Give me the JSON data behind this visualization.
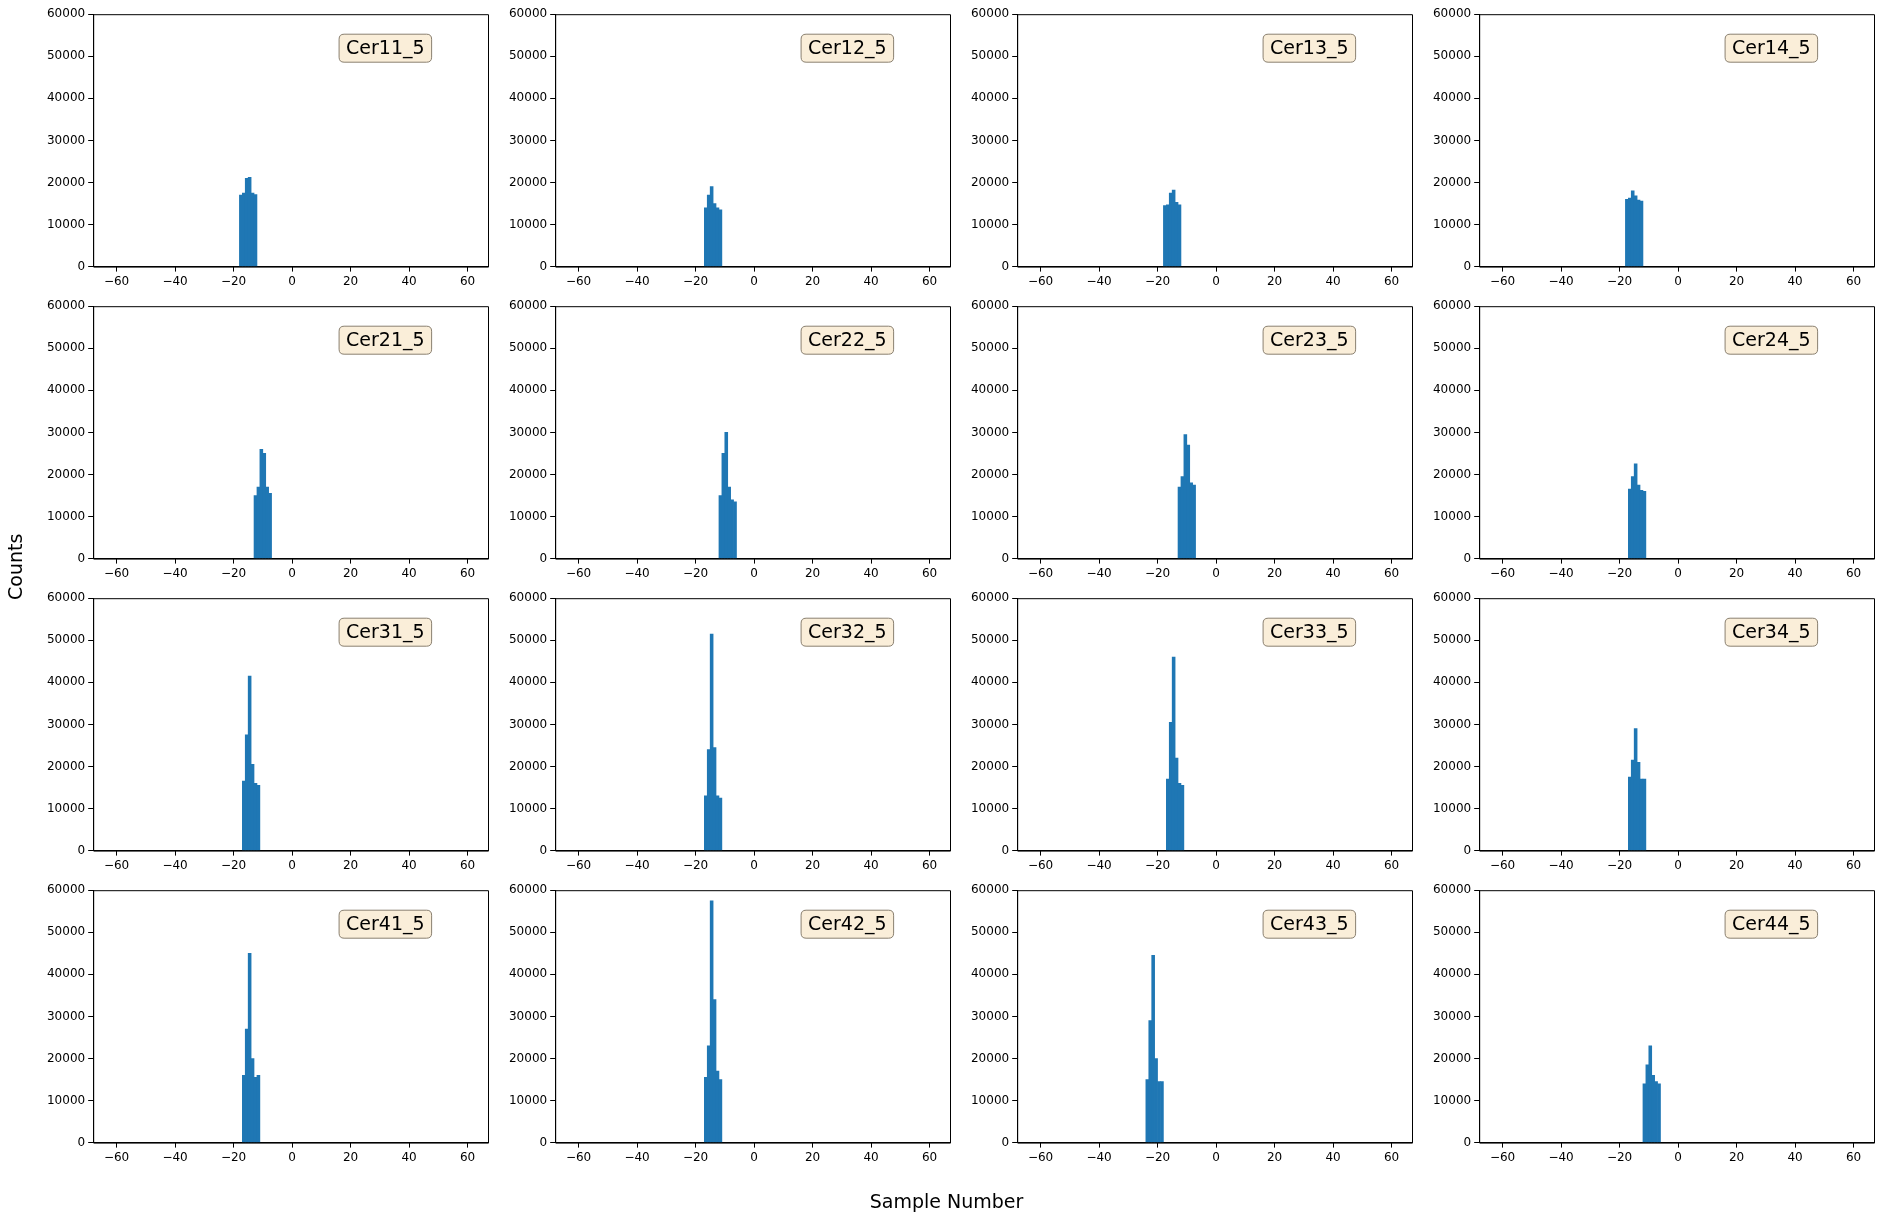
{
  "chart_data": [
    {
      "type": "histogram",
      "annotations": [
        "Cer11_5"
      ],
      "color": "#1f77b4",
      "bins": [
        -18,
        -17,
        -16,
        -15,
        -14,
        -13,
        -12
      ],
      "values": [
        17000,
        17500,
        21000,
        21200,
        17500,
        17100
      ],
      "xlim": [
        -68,
        67
      ],
      "ylim": [
        0,
        60000
      ],
      "xticks": [
        {
          "value": -60,
          "label": "−60"
        },
        {
          "value": -40,
          "label": "−40"
        },
        {
          "value": -20,
          "label": "−20"
        },
        0,
        20,
        40,
        60
      ],
      "yticks": [
        0,
        10000,
        20000,
        30000,
        40000,
        50000,
        60000
      ]
    },
    {
      "type": "histogram",
      "annotations": [
        "Cer12_5"
      ],
      "color": "#1f77b4",
      "bins": [
        -17,
        -16,
        -15,
        -14,
        -13,
        -12,
        -11
      ],
      "values": [
        14000,
        17000,
        19000,
        15000,
        14000,
        13500
      ],
      "xlim": [
        -68,
        67
      ],
      "ylim": [
        0,
        60000
      ],
      "xticks": [
        {
          "value": -60,
          "label": "−60"
        },
        {
          "value": -40,
          "label": "−40"
        },
        {
          "value": -20,
          "label": "−20"
        },
        0,
        20,
        40,
        60
      ],
      "yticks": [
        0,
        10000,
        20000,
        30000,
        40000,
        50000,
        60000
      ]
    },
    {
      "type": "histogram",
      "annotations": [
        "Cer13_5"
      ],
      "color": "#1f77b4",
      "bins": [
        -18,
        -17,
        -16,
        -15,
        -14,
        -13,
        -12
      ],
      "values": [
        14500,
        14700,
        17500,
        18200,
        15300,
        14700
      ],
      "xlim": [
        -68,
        67
      ],
      "ylim": [
        0,
        60000
      ],
      "xticks": [
        {
          "value": -60,
          "label": "−60"
        },
        {
          "value": -40,
          "label": "−40"
        },
        {
          "value": -20,
          "label": "−20"
        },
        0,
        20,
        40,
        60
      ],
      "yticks": [
        0,
        10000,
        20000,
        30000,
        40000,
        50000,
        60000
      ]
    },
    {
      "type": "histogram",
      "annotations": [
        "Cer14_5"
      ],
      "color": "#1f77b4",
      "bins": [
        -18,
        -17,
        -16,
        -15,
        -14,
        -13,
        -12
      ],
      "values": [
        16000,
        16300,
        18000,
        16800,
        15800,
        15600
      ],
      "xlim": [
        -68,
        67
      ],
      "ylim": [
        0,
        60000
      ],
      "xticks": [
        {
          "value": -60,
          "label": "−60"
        },
        {
          "value": -40,
          "label": "−40"
        },
        {
          "value": -20,
          "label": "−20"
        },
        0,
        20,
        40,
        60
      ],
      "yticks": [
        0,
        10000,
        20000,
        30000,
        40000,
        50000,
        60000
      ]
    },
    {
      "type": "histogram",
      "ylabel": "Counts",
      "annotations": [
        "Cer21_5"
      ],
      "color": "#1f77b4",
      "bins": [
        -13,
        -12,
        -11,
        -10,
        -9,
        -8,
        -7
      ],
      "values": [
        15000,
        17000,
        26000,
        25000,
        17000,
        15500
      ],
      "xlim": [
        -68,
        67
      ],
      "ylim": [
        0,
        60000
      ],
      "xticks": [
        {
          "value": -60,
          "label": "−60"
        },
        {
          "value": -40,
          "label": "−40"
        },
        {
          "value": -20,
          "label": "−20"
        },
        0,
        20,
        40,
        60
      ],
      "yticks": [
        0,
        10000,
        20000,
        30000,
        40000,
        50000,
        60000
      ]
    },
    {
      "type": "histogram",
      "annotations": [
        "Cer22_5"
      ],
      "color": "#1f77b4",
      "bins": [
        -12,
        -11,
        -10,
        -9,
        -8,
        -7,
        -6
      ],
      "values": [
        15000,
        25000,
        30000,
        17000,
        14000,
        13500
      ],
      "xlim": [
        -68,
        67
      ],
      "ylim": [
        0,
        60000
      ],
      "xticks": [
        {
          "value": -60,
          "label": "−60"
        },
        {
          "value": -40,
          "label": "−40"
        },
        {
          "value": -20,
          "label": "−20"
        },
        0,
        20,
        40,
        60
      ],
      "yticks": [
        0,
        10000,
        20000,
        30000,
        40000,
        50000,
        60000
      ]
    },
    {
      "type": "histogram",
      "annotations": [
        "Cer23_5"
      ],
      "color": "#1f77b4",
      "bins": [
        -13,
        -12,
        -11,
        -10,
        -9,
        -8,
        -7
      ],
      "values": [
        17000,
        19500,
        29500,
        27000,
        18000,
        17500
      ],
      "xlim": [
        -68,
        67
      ],
      "ylim": [
        0,
        60000
      ],
      "xticks": [
        {
          "value": -60,
          "label": "−60"
        },
        {
          "value": -40,
          "label": "−40"
        },
        {
          "value": -20,
          "label": "−20"
        },
        0,
        20,
        40,
        60
      ],
      "yticks": [
        0,
        10000,
        20000,
        30000,
        40000,
        50000,
        60000
      ]
    },
    {
      "type": "histogram",
      "annotations": [
        "Cer24_5"
      ],
      "color": "#1f77b4",
      "bins": [
        -17,
        -16,
        -15,
        -14,
        -13,
        -12,
        -11
      ],
      "values": [
        16500,
        19500,
        22500,
        17500,
        16200,
        16000
      ],
      "xlim": [
        -68,
        67
      ],
      "ylim": [
        0,
        60000
      ],
      "xticks": [
        {
          "value": -60,
          "label": "−60"
        },
        {
          "value": -40,
          "label": "−40"
        },
        {
          "value": -20,
          "label": "−20"
        },
        0,
        20,
        40,
        60
      ],
      "yticks": [
        0,
        10000,
        20000,
        30000,
        40000,
        50000,
        60000
      ]
    },
    {
      "type": "histogram",
      "annotations": [
        "Cer31_5"
      ],
      "color": "#1f77b4",
      "bins": [
        -17,
        -16,
        -15,
        -14,
        -13,
        -12,
        -11
      ],
      "values": [
        16500,
        27500,
        41500,
        20500,
        16000,
        15500
      ],
      "xlim": [
        -68,
        67
      ],
      "ylim": [
        0,
        60000
      ],
      "xticks": [
        {
          "value": -60,
          "label": "−60"
        },
        {
          "value": -40,
          "label": "−40"
        },
        {
          "value": -20,
          "label": "−20"
        },
        0,
        20,
        40,
        60
      ],
      "yticks": [
        0,
        10000,
        20000,
        30000,
        40000,
        50000,
        60000
      ]
    },
    {
      "type": "histogram",
      "annotations": [
        "Cer32_5"
      ],
      "color": "#1f77b4",
      "bins": [
        -17,
        -16,
        -15,
        -14,
        -13,
        -12,
        -11
      ],
      "values": [
        13000,
        24000,
        51500,
        24500,
        13000,
        12500
      ],
      "xlim": [
        -68,
        67
      ],
      "ylim": [
        0,
        60000
      ],
      "xticks": [
        {
          "value": -60,
          "label": "−60"
        },
        {
          "value": -40,
          "label": "−40"
        },
        {
          "value": -20,
          "label": "−20"
        },
        0,
        20,
        40,
        60
      ],
      "yticks": [
        0,
        10000,
        20000,
        30000,
        40000,
        50000,
        60000
      ]
    },
    {
      "type": "histogram",
      "annotations": [
        "Cer33_5"
      ],
      "color": "#1f77b4",
      "bins": [
        -17,
        -16,
        -15,
        -14,
        -13,
        -12,
        -11
      ],
      "values": [
        17000,
        30500,
        46000,
        22000,
        16000,
        15500
      ],
      "xlim": [
        -68,
        67
      ],
      "ylim": [
        0,
        60000
      ],
      "xticks": [
        {
          "value": -60,
          "label": "−60"
        },
        {
          "value": -40,
          "label": "−40"
        },
        {
          "value": -20,
          "label": "−20"
        },
        0,
        20,
        40,
        60
      ],
      "yticks": [
        0,
        10000,
        20000,
        30000,
        40000,
        50000,
        60000
      ]
    },
    {
      "type": "histogram",
      "annotations": [
        "Cer34_5"
      ],
      "color": "#1f77b4",
      "bins": [
        -17,
        -16,
        -15,
        -14,
        -13,
        -12,
        -11
      ],
      "values": [
        17500,
        21500,
        29000,
        21000,
        17000,
        17000
      ],
      "xlim": [
        -68,
        67
      ],
      "ylim": [
        0,
        60000
      ],
      "xticks": [
        {
          "value": -60,
          "label": "−60"
        },
        {
          "value": -40,
          "label": "−40"
        },
        {
          "value": -20,
          "label": "−20"
        },
        0,
        20,
        40,
        60
      ],
      "yticks": [
        0,
        10000,
        20000,
        30000,
        40000,
        50000,
        60000
      ]
    },
    {
      "type": "histogram",
      "annotations": [
        "Cer41_5"
      ],
      "color": "#1f77b4",
      "bins": [
        -17,
        -16,
        -15,
        -14,
        -13,
        -12,
        -11
      ],
      "values": [
        16000,
        27000,
        45000,
        20000,
        15500,
        16000
      ],
      "xlim": [
        -68,
        67
      ],
      "ylim": [
        0,
        60000
      ],
      "xticks": [
        {
          "value": -60,
          "label": "−60"
        },
        {
          "value": -40,
          "label": "−40"
        },
        {
          "value": -20,
          "label": "−20"
        },
        0,
        20,
        40,
        60
      ],
      "yticks": [
        0,
        10000,
        20000,
        30000,
        40000,
        50000,
        60000
      ]
    },
    {
      "type": "histogram",
      "xlabel": "Sample Number",
      "annotations": [
        "Cer42_5"
      ],
      "color": "#1f77b4",
      "bins": [
        -17,
        -16,
        -15,
        -14,
        -13,
        -12,
        -11
      ],
      "values": [
        15500,
        23000,
        57500,
        34000,
        17000,
        15000
      ],
      "xlim": [
        -68,
        67
      ],
      "ylim": [
        0,
        60000
      ],
      "xticks": [
        {
          "value": -60,
          "label": "−60"
        },
        {
          "value": -40,
          "label": "−40"
        },
        {
          "value": -20,
          "label": "−20"
        },
        0,
        20,
        40,
        60
      ],
      "yticks": [
        0,
        10000,
        20000,
        30000,
        40000,
        50000,
        60000
      ]
    },
    {
      "type": "histogram",
      "annotations": [
        "Cer43_5"
      ],
      "color": "#1f77b4",
      "bins": [
        -24,
        -23,
        -22,
        -21,
        -20,
        -19,
        -18
      ],
      "values": [
        15000,
        29000,
        44500,
        20000,
        14500,
        14500
      ],
      "xlim": [
        -68,
        67
      ],
      "ylim": [
        0,
        60000
      ],
      "xticks": [
        {
          "value": -60,
          "label": "−60"
        },
        {
          "value": -40,
          "label": "−40"
        },
        {
          "value": -20,
          "label": "−20"
        },
        0,
        20,
        40,
        60
      ],
      "yticks": [
        0,
        10000,
        20000,
        30000,
        40000,
        50000,
        60000
      ]
    },
    {
      "type": "histogram",
      "annotations": [
        "Cer44_5"
      ],
      "color": "#1f77b4",
      "bins": [
        -12,
        -11,
        -10,
        -9,
        -8,
        -7,
        -6
      ],
      "values": [
        14000,
        18500,
        23000,
        16000,
        14500,
        14000
      ],
      "xlim": [
        -68,
        67
      ],
      "ylim": [
        0,
        60000
      ],
      "xticks": [
        {
          "value": -60,
          "label": "−60"
        },
        {
          "value": -40,
          "label": "−40"
        },
        {
          "value": -20,
          "label": "−20"
        },
        0,
        20,
        40,
        60
      ],
      "yticks": [
        0,
        10000,
        20000,
        30000,
        40000,
        50000,
        60000
      ]
    }
  ]
}
